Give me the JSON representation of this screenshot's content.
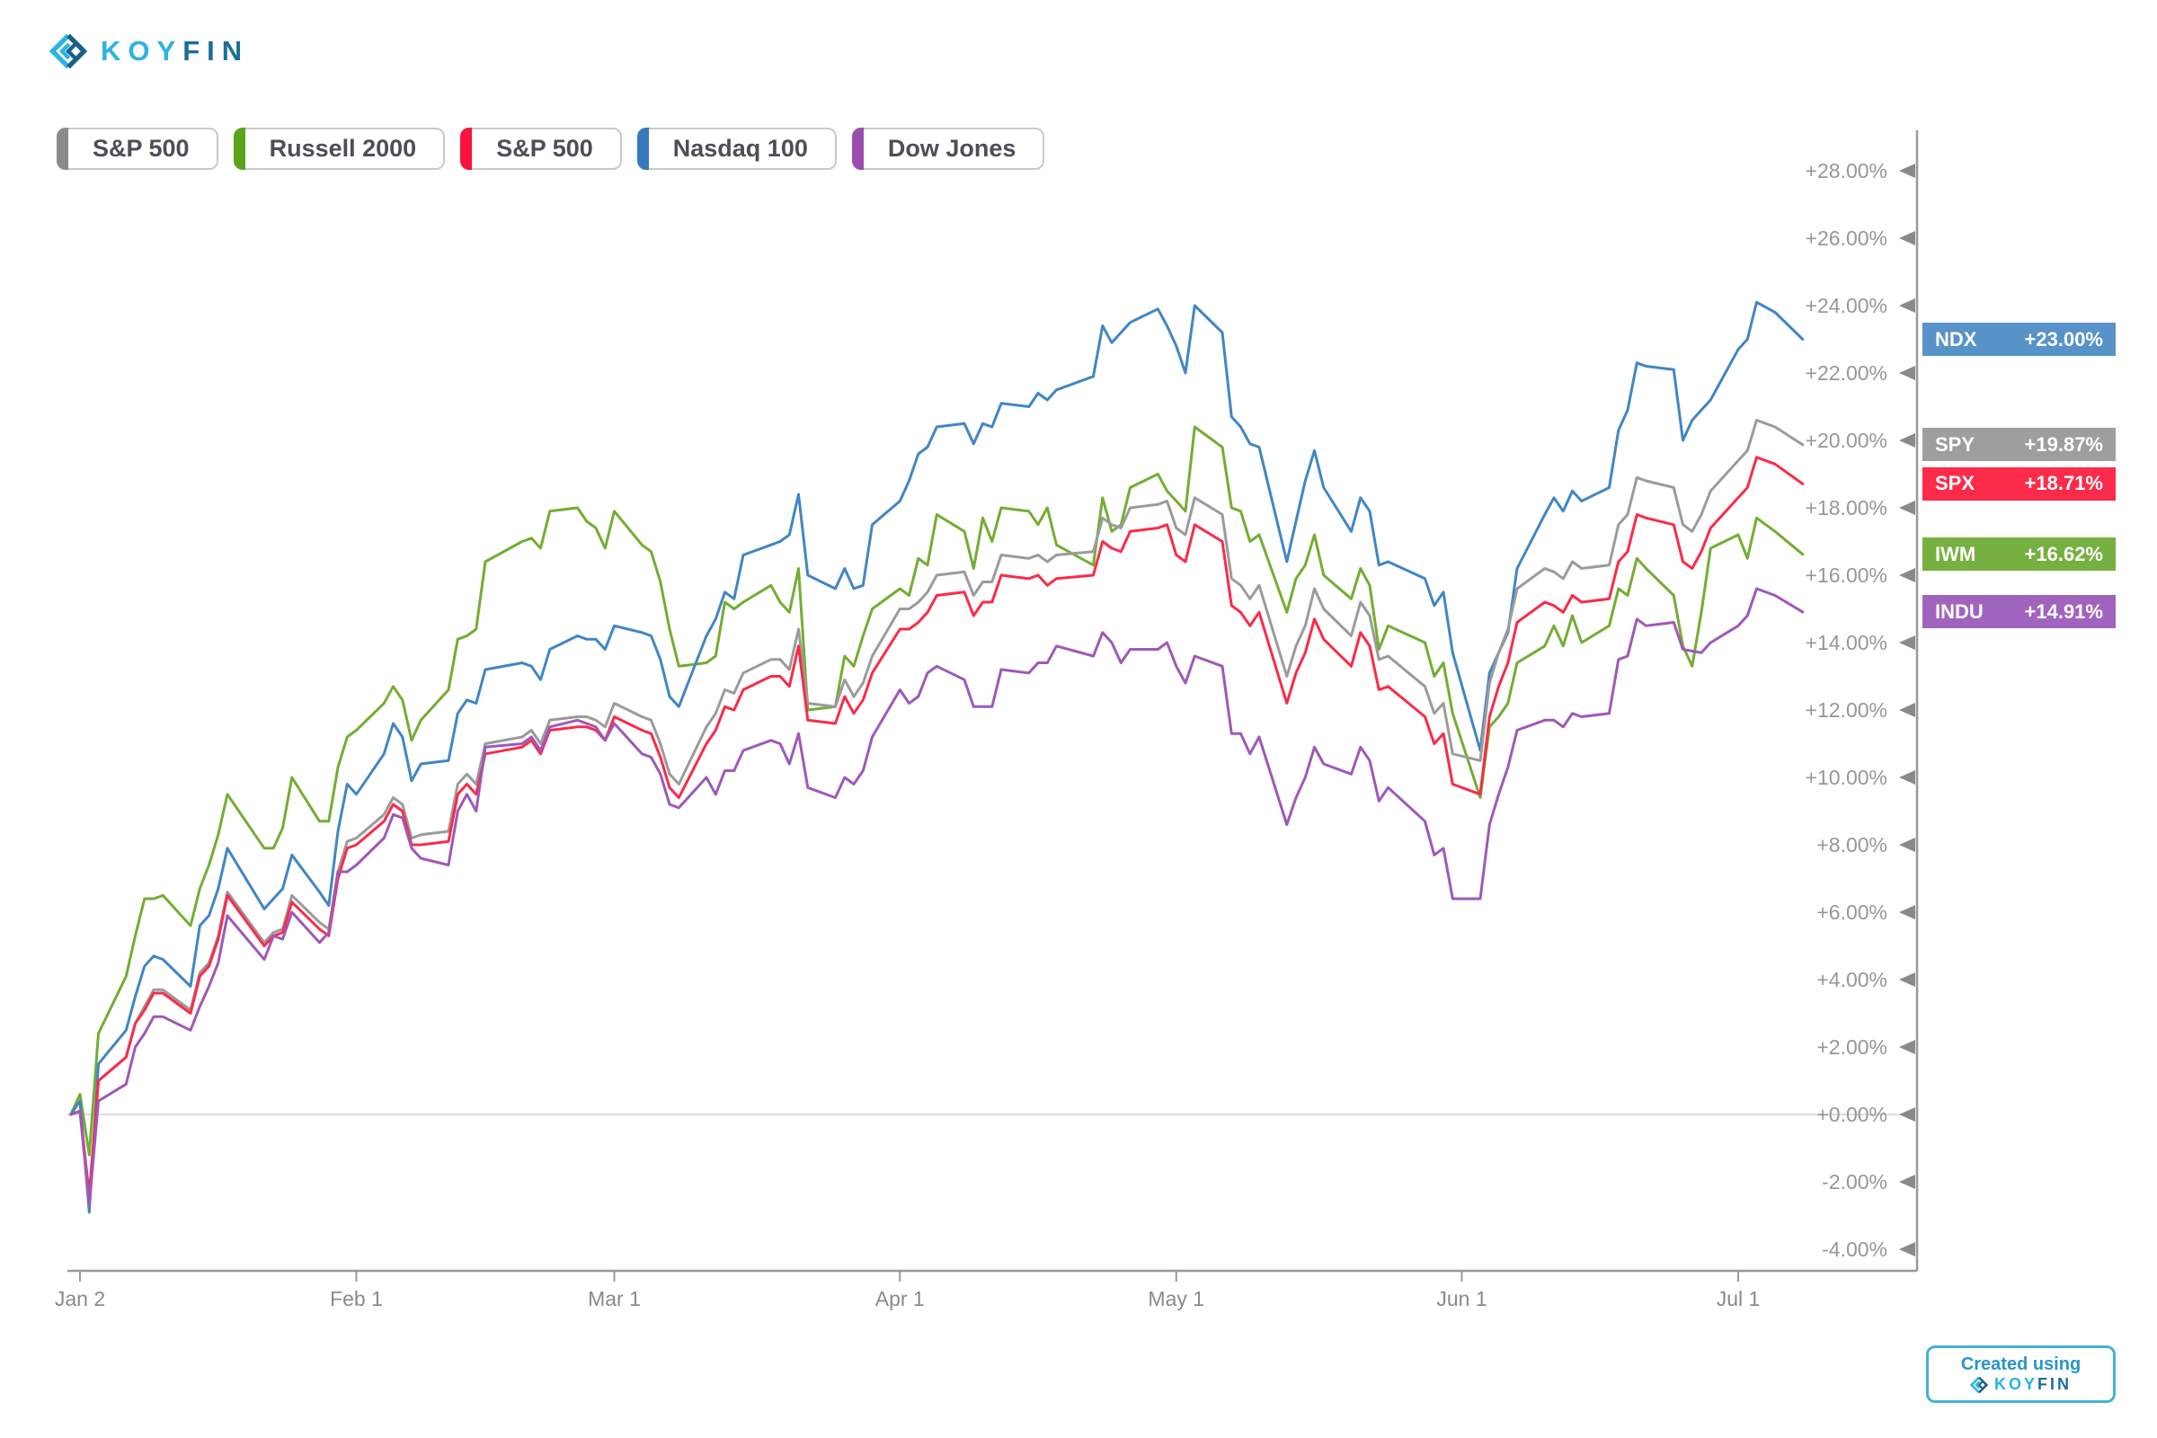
{
  "header": {
    "logo_koy": "KOY",
    "logo_fin": "FIN"
  },
  "legend": {
    "chips": [
      {
        "label": "S&P 500",
        "color": "#8b8b8b"
      },
      {
        "label": "Russell 2000",
        "color": "#5ca41c"
      },
      {
        "label": "S&P 500",
        "color": "#f8123d"
      },
      {
        "label": "Nasdaq 100",
        "color": "#3779bd"
      },
      {
        "label": "Dow Jones",
        "color": "#9a4fb0"
      }
    ]
  },
  "badges": [
    {
      "ticker": "NDX",
      "value": "+23.00%",
      "pct": 23.0,
      "color": "#5792c9"
    },
    {
      "ticker": "SPY",
      "value": "+19.87%",
      "pct": 19.87,
      "color": "#9e9e9e"
    },
    {
      "ticker": "SPX",
      "value": "+18.71%",
      "pct": 18.71,
      "color": "#fb2b49"
    },
    {
      "ticker": "IWM",
      "value": "+16.62%",
      "pct": 16.62,
      "color": "#76b041"
    },
    {
      "ticker": "INDU",
      "value": "+14.91%",
      "pct": 14.91,
      "color": "#a164be"
    }
  ],
  "footer_badge": {
    "line1": "Created using",
    "koy": "KOY",
    "fin": "FIN"
  },
  "chart_data": {
    "type": "line",
    "title": "",
    "x_axis": {
      "unit": "calendar day offset from Jan 2",
      "tick_labels": [
        "Jan 2",
        "Feb 1",
        "Mar 1",
        "Apr 1",
        "May 1",
        "Jun 1",
        "Jul 1"
      ],
      "tick_days": [
        0,
        30,
        58,
        89,
        119,
        150,
        180
      ],
      "range_days": [
        -1,
        187
      ]
    },
    "y_axis": {
      "tick_labels": [
        "+28.00%",
        "+26.00%",
        "+24.00%",
        "+22.00%",
        "+20.00%",
        "+18.00%",
        "+16.00%",
        "+14.00%",
        "+12.00%",
        "+10.00%",
        "+8.00%",
        "+6.00%",
        "+4.00%",
        "+2.00%",
        "+0.00%",
        "-2.00%",
        "-4.00%"
      ],
      "tick_values": [
        28,
        26,
        24,
        22,
        20,
        18,
        16,
        14,
        12,
        10,
        8,
        6,
        4,
        2,
        0,
        -2,
        -4
      ],
      "ylim": [
        -4.9,
        29.2
      ],
      "zero_line": true,
      "grid": false,
      "format": "+0.00%"
    },
    "legend_position": "top-left-chips",
    "days": [
      -1,
      0,
      1,
      2,
      5,
      6,
      7,
      8,
      9,
      12,
      13,
      14,
      15,
      16,
      20,
      21,
      22,
      23,
      26,
      27,
      28,
      29,
      30,
      33,
      34,
      35,
      36,
      37,
      40,
      41,
      42,
      43,
      44,
      48,
      49,
      50,
      51,
      54,
      55,
      56,
      57,
      58,
      61,
      62,
      63,
      64,
      65,
      68,
      69,
      70,
      71,
      72,
      75,
      76,
      77,
      78,
      79,
      82,
      83,
      84,
      85,
      86,
      89,
      90,
      91,
      92,
      93,
      96,
      97,
      98,
      99,
      100,
      103,
      104,
      105,
      106,
      110,
      111,
      112,
      113,
      114,
      117,
      118,
      119,
      120,
      121,
      124,
      125,
      126,
      127,
      128,
      131,
      132,
      133,
      134,
      135,
      138,
      139,
      140,
      141,
      142,
      146,
      147,
      148,
      149,
      152,
      153,
      154,
      155,
      156,
      159,
      160,
      161,
      162,
      163,
      166,
      167,
      168,
      169,
      170,
      173,
      174,
      175,
      176,
      177,
      180,
      181,
      182,
      184,
      187
    ],
    "series": [
      {
        "name": "Russell 2000",
        "ticker": "IWM",
        "color": "#74ad34",
        "final_label": "+16.62%",
        "values": [
          0,
          0.6,
          -1.2,
          2.4,
          4.1,
          5.3,
          6.4,
          6.4,
          6.5,
          5.6,
          6.7,
          7.4,
          8.3,
          9.5,
          7.9,
          7.9,
          8.5,
          10.0,
          8.7,
          8.7,
          10.3,
          11.2,
          11.4,
          12.2,
          12.7,
          12.3,
          11.1,
          11.7,
          12.6,
          14.1,
          14.2,
          14.4,
          16.4,
          17.0,
          17.1,
          16.8,
          17.9,
          18.0,
          17.6,
          17.4,
          16.8,
          17.9,
          16.9,
          16.7,
          15.8,
          14.4,
          13.3,
          13.4,
          13.6,
          15.2,
          15.0,
          15.2,
          15.7,
          15.2,
          14.9,
          16.2,
          12.0,
          12.1,
          13.6,
          13.3,
          14.2,
          15.0,
          15.6,
          15.4,
          16.5,
          16.3,
          17.8,
          17.3,
          16.2,
          17.7,
          17.0,
          18.0,
          17.9,
          17.5,
          18.0,
          16.9,
          16.3,
          18.3,
          17.3,
          17.5,
          18.6,
          19.0,
          18.5,
          18.2,
          17.9,
          20.4,
          19.8,
          18.0,
          17.9,
          17.0,
          17.2,
          14.9,
          15.9,
          16.3,
          17.2,
          16.0,
          15.3,
          16.2,
          15.7,
          13.8,
          14.5,
          14.0,
          13.0,
          13.4,
          11.9,
          9.4,
          11.5,
          11.8,
          12.2,
          13.4,
          13.9,
          14.5,
          13.9,
          14.8,
          14.0,
          14.5,
          15.6,
          15.4,
          16.5,
          16.2,
          15.4,
          13.9,
          13.3,
          14.9,
          16.8,
          17.2,
          16.5,
          17.7,
          17.3,
          16.62
        ]
      },
      {
        "name": "Nasdaq 100",
        "ticker": "NDX",
        "color": "#4186c4",
        "final_label": "+23.00%",
        "values": [
          0,
          0.4,
          -2.9,
          1.5,
          2.5,
          3.5,
          4.4,
          4.7,
          4.6,
          3.8,
          5.6,
          5.9,
          6.7,
          7.9,
          6.1,
          6.4,
          6.7,
          7.7,
          6.6,
          6.2,
          8.4,
          9.8,
          9.5,
          10.7,
          11.6,
          11.2,
          9.9,
          10.4,
          10.5,
          11.9,
          12.3,
          12.2,
          13.2,
          13.4,
          13.3,
          12.9,
          13.8,
          14.2,
          14.1,
          14.1,
          13.8,
          14.5,
          14.3,
          14.2,
          13.5,
          12.4,
          12.1,
          14.2,
          14.7,
          15.5,
          15.3,
          16.6,
          16.9,
          17.0,
          17.2,
          18.4,
          16.0,
          15.6,
          16.2,
          15.6,
          15.7,
          17.5,
          18.2,
          18.8,
          19.6,
          19.8,
          20.4,
          20.5,
          19.9,
          20.5,
          20.4,
          21.1,
          21.0,
          21.4,
          21.2,
          21.5,
          21.9,
          23.4,
          22.9,
          23.2,
          23.5,
          23.9,
          23.4,
          22.8,
          22.0,
          24.0,
          23.2,
          20.7,
          20.4,
          19.9,
          19.8,
          16.4,
          17.6,
          18.8,
          19.7,
          18.6,
          17.3,
          18.3,
          17.9,
          16.3,
          16.4,
          15.9,
          15.1,
          15.5,
          13.7,
          10.8,
          13.1,
          13.7,
          14.3,
          16.2,
          17.8,
          18.3,
          17.9,
          18.5,
          18.2,
          18.6,
          20.3,
          20.9,
          22.3,
          22.2,
          22.1,
          20.0,
          20.6,
          20.9,
          21.2,
          22.7,
          23.0,
          24.1,
          23.8,
          23.0
        ]
      },
      {
        "name": "S&P 500 (SPY)",
        "ticker": "SPY",
        "color": "#9b9b9b",
        "final_label": "+19.87%",
        "values": [
          0,
          0.1,
          -2.4,
          1.0,
          1.7,
          2.7,
          3.2,
          3.7,
          3.7,
          3.1,
          4.2,
          4.5,
          5.3,
          6.6,
          5.1,
          5.4,
          5.5,
          6.5,
          5.7,
          5.5,
          7.2,
          8.1,
          8.2,
          8.9,
          9.4,
          9.2,
          8.2,
          8.3,
          8.4,
          9.8,
          10.1,
          9.8,
          11.0,
          11.2,
          11.4,
          11.0,
          11.7,
          11.8,
          11.8,
          11.7,
          11.5,
          12.2,
          11.8,
          11.7,
          11.0,
          10.1,
          9.8,
          11.5,
          11.9,
          12.6,
          12.5,
          13.1,
          13.5,
          13.5,
          13.2,
          14.4,
          12.2,
          12.1,
          12.9,
          12.4,
          12.8,
          13.6,
          15.0,
          15.0,
          15.2,
          15.5,
          16.0,
          16.1,
          15.4,
          15.8,
          15.8,
          16.6,
          16.5,
          16.6,
          16.4,
          16.6,
          16.7,
          17.7,
          17.5,
          17.4,
          18.0,
          18.1,
          18.2,
          17.4,
          17.2,
          18.3,
          17.8,
          15.9,
          15.7,
          15.3,
          15.7,
          13.0,
          13.9,
          14.5,
          15.6,
          15.0,
          14.2,
          15.2,
          14.8,
          13.5,
          13.6,
          12.7,
          11.9,
          12.2,
          10.7,
          10.5,
          12.8,
          13.7,
          14.4,
          15.6,
          16.2,
          16.1,
          15.9,
          16.4,
          16.2,
          16.3,
          17.5,
          17.8,
          18.9,
          18.8,
          18.6,
          17.5,
          17.3,
          17.8,
          18.5,
          19.4,
          19.7,
          20.6,
          20.4,
          19.87
        ]
      },
      {
        "name": "S&P 500 (SPX)",
        "ticker": "SPX",
        "color": "#fa2b49",
        "final_label": "+18.71%",
        "values": [
          0,
          0.1,
          -2.4,
          1.0,
          1.7,
          2.7,
          3.1,
          3.6,
          3.6,
          3.0,
          4.1,
          4.4,
          5.2,
          6.5,
          5.0,
          5.3,
          5.4,
          6.3,
          5.5,
          5.3,
          7.0,
          7.9,
          8.0,
          8.7,
          9.2,
          9.0,
          8.0,
          8.0,
          8.1,
          9.5,
          9.8,
          9.5,
          10.7,
          10.9,
          11.1,
          10.7,
          11.4,
          11.5,
          11.5,
          11.4,
          11.1,
          11.8,
          11.4,
          11.3,
          10.6,
          9.7,
          9.4,
          11.0,
          11.4,
          12.1,
          12.0,
          12.6,
          13.0,
          13.0,
          12.7,
          13.9,
          11.7,
          11.6,
          12.4,
          11.9,
          12.3,
          13.1,
          14.4,
          14.4,
          14.6,
          14.9,
          15.4,
          15.5,
          14.8,
          15.2,
          15.2,
          16.0,
          15.9,
          16.0,
          15.7,
          15.9,
          16.0,
          17.0,
          16.8,
          16.7,
          17.3,
          17.4,
          17.5,
          16.6,
          16.4,
          17.5,
          17.0,
          15.1,
          14.9,
          14.5,
          14.9,
          12.2,
          13.1,
          13.7,
          14.7,
          14.1,
          13.3,
          14.3,
          13.9,
          12.6,
          12.7,
          11.8,
          11.0,
          11.3,
          9.8,
          9.5,
          11.8,
          12.7,
          13.4,
          14.6,
          15.2,
          15.1,
          14.9,
          15.4,
          15.2,
          15.3,
          16.4,
          16.7,
          17.8,
          17.7,
          17.5,
          16.4,
          16.2,
          16.7,
          17.4,
          18.3,
          18.6,
          19.5,
          19.3,
          18.71
        ]
      },
      {
        "name": "Dow Jones",
        "ticker": "INDU",
        "color": "#9e59b8",
        "final_label": "+14.91%",
        "values": [
          0,
          0.1,
          -2.7,
          0.4,
          0.9,
          2.0,
          2.4,
          2.9,
          2.9,
          2.5,
          3.2,
          3.8,
          4.5,
          5.9,
          4.6,
          5.3,
          5.2,
          6.0,
          5.1,
          5.4,
          7.2,
          7.2,
          7.4,
          8.2,
          8.9,
          8.8,
          7.9,
          7.6,
          7.4,
          9.0,
          9.5,
          9.0,
          10.9,
          11.0,
          11.2,
          10.8,
          11.5,
          11.7,
          11.6,
          11.5,
          11.1,
          11.6,
          10.7,
          10.6,
          10.1,
          9.2,
          9.1,
          10.0,
          9.5,
          10.2,
          10.2,
          10.8,
          11.1,
          11.0,
          10.4,
          11.3,
          9.7,
          9.4,
          10.0,
          9.8,
          10.2,
          11.2,
          12.6,
          12.2,
          12.4,
          13.1,
          13.3,
          12.9,
          12.1,
          12.1,
          12.1,
          13.2,
          13.1,
          13.4,
          13.4,
          13.9,
          13.6,
          14.3,
          14.0,
          13.4,
          13.8,
          13.8,
          14.0,
          13.3,
          12.8,
          13.6,
          13.3,
          11.3,
          11.3,
          10.7,
          11.2,
          8.6,
          9.4,
          10.0,
          10.9,
          10.4,
          10.1,
          10.9,
          10.5,
          9.3,
          9.7,
          8.7,
          7.7,
          7.9,
          6.4,
          6.4,
          8.6,
          9.5,
          10.3,
          11.4,
          11.7,
          11.7,
          11.5,
          11.9,
          11.8,
          11.9,
          13.5,
          13.6,
          14.7,
          14.5,
          14.6,
          13.8,
          13.75,
          13.7,
          14.0,
          14.5,
          14.8,
          15.6,
          15.4,
          14.91
        ]
      }
    ]
  }
}
